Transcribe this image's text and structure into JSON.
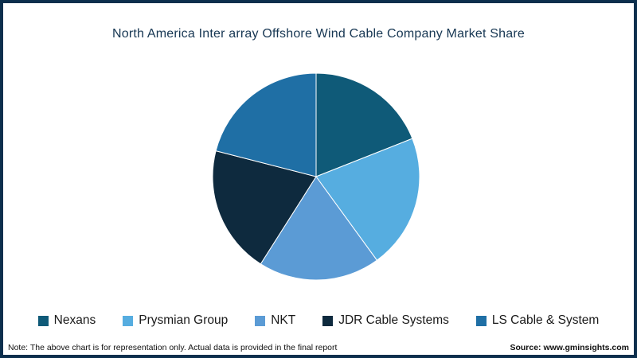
{
  "title": "North America Inter array Offshore Wind Cable Company Market Share",
  "chart_data": {
    "type": "pie",
    "title": "North America Inter array Offshore Wind Cable Company Market Share",
    "unit": "percent (estimated, chart is representational)",
    "start_angle_deg": 0,
    "direction": "clockwise",
    "legend_position": "bottom",
    "series": [
      {
        "name": "Nexans",
        "value": 19,
        "color": "#0f5a78"
      },
      {
        "name": "Prysmian Group",
        "value": 21,
        "color": "#56ade0"
      },
      {
        "name": "NKT",
        "value": 19,
        "color": "#5b9bd5"
      },
      {
        "name": "JDR Cable Systems",
        "value": 20,
        "color": "#0e2a3e"
      },
      {
        "name": "LS Cable & System",
        "value": 21,
        "color": "#1f6fa5"
      }
    ]
  },
  "footer": {
    "note": "Note: The above chart is for representation only. Actual data is provided in the final report",
    "source": "Source: www.gminsights.com"
  },
  "frame": {
    "border_color": "#0c2f4d",
    "background": "#ffffff"
  }
}
